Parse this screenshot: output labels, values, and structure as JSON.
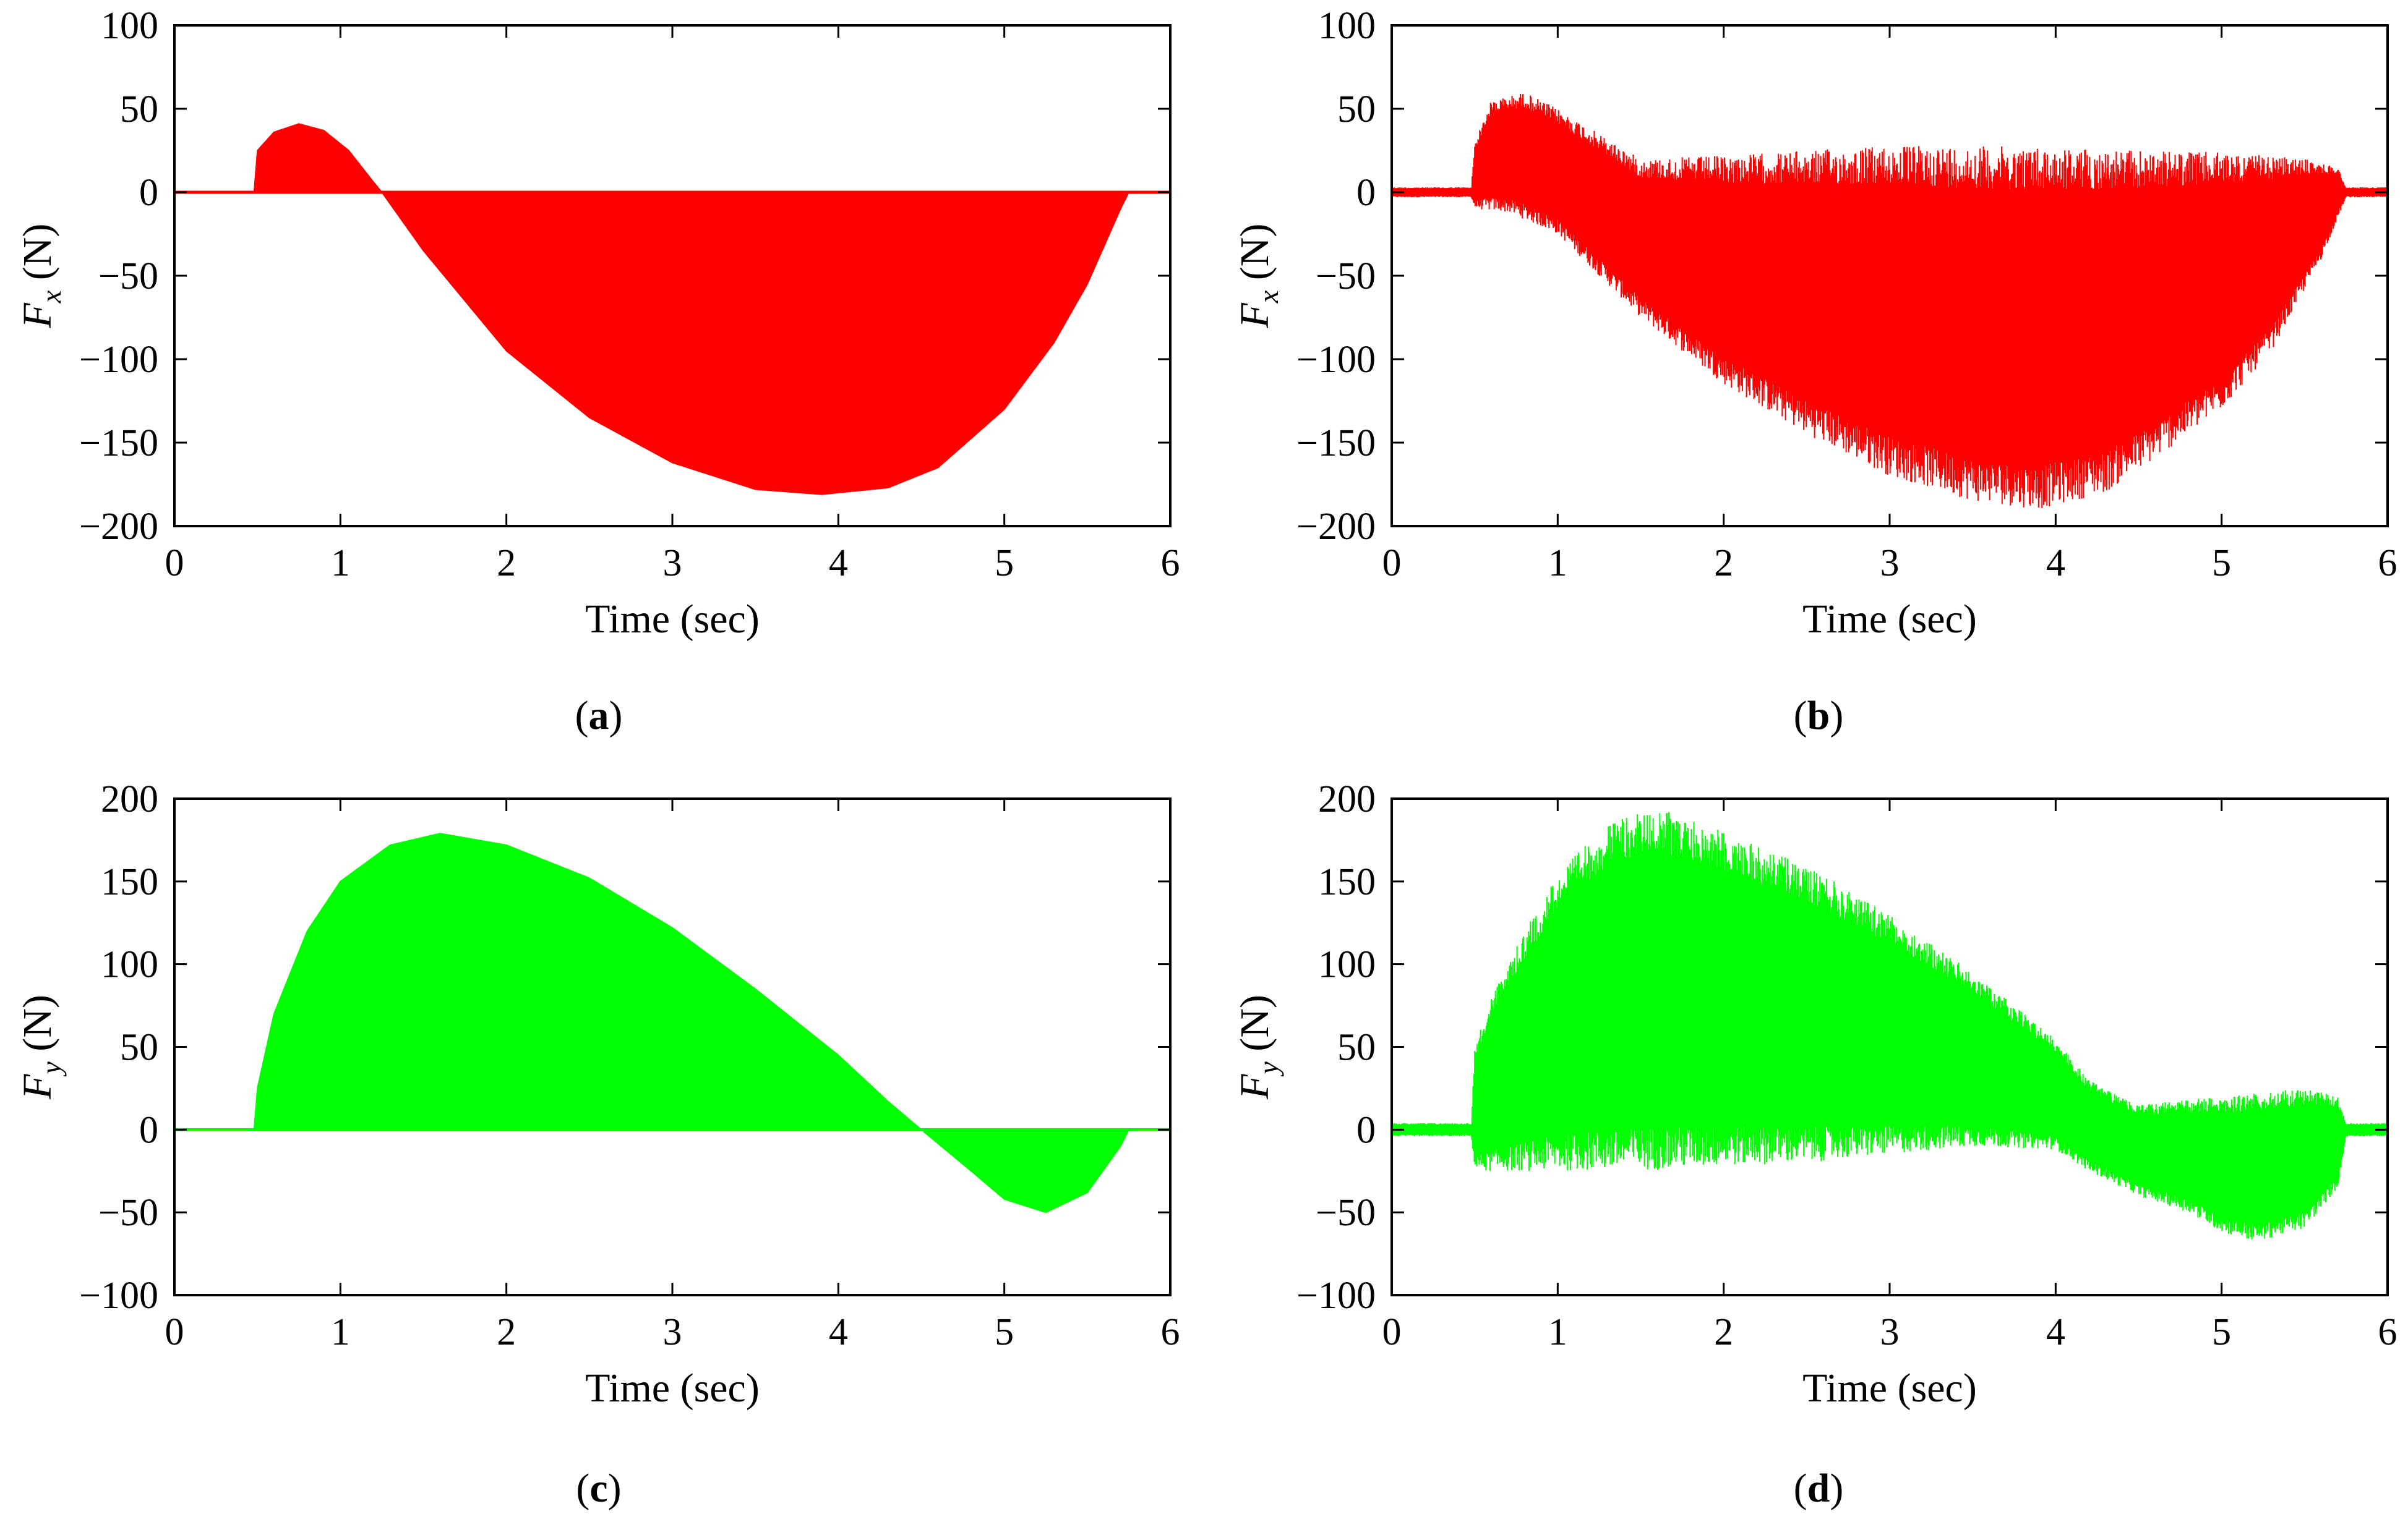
{
  "chart_data": [
    {
      "id": "a",
      "type": "area",
      "caption_letter": "a",
      "xlabel": "Time (sec)",
      "ylabel_var": "F",
      "ylabel_sub": "x",
      "ylabel_unit": "(N)",
      "xlim": [
        0,
        6
      ],
      "ylim": [
        -200,
        100
      ],
      "xticks": [
        "0",
        "1",
        "2",
        "3",
        "4",
        "5",
        "6"
      ],
      "yticks": [
        "100",
        "50",
        "0",
        "−50",
        "−100",
        "−150",
        "−200"
      ],
      "ytick_values": [
        100,
        50,
        0,
        -50,
        -100,
        -150,
        -200
      ],
      "color": "#ff0000",
      "style": "smooth-fill",
      "envelope": {
        "t": [
          0,
          0.45,
          0.48,
          0.5,
          0.6,
          0.75,
          0.9,
          1.05,
          1.2,
          1.25,
          1.5,
          2.0,
          2.5,
          3.0,
          3.5,
          3.9,
          4.3,
          4.6,
          5.0,
          5.3,
          5.5,
          5.7,
          5.75,
          6.0
        ],
        "y": [
          0,
          0,
          0,
          25,
          36,
          41,
          37,
          25,
          6,
          0,
          -35,
          -95,
          -135,
          -162,
          -178,
          -181,
          -177,
          -165,
          -130,
          -90,
          -55,
          -10,
          0,
          0
        ]
      }
    },
    {
      "id": "b",
      "type": "line",
      "caption_letter": "b",
      "xlabel": "Time (sec)",
      "ylabel_var": "F",
      "ylabel_sub": "x",
      "ylabel_unit": "(N)",
      "xlim": [
        0,
        6
      ],
      "ylim": [
        -200,
        100
      ],
      "xticks": [
        "0",
        "1",
        "2",
        "3",
        "4",
        "5",
        "6"
      ],
      "yticks": [
        "100",
        "50",
        "0",
        "−50",
        "−100",
        "−150",
        "−200"
      ],
      "ytick_values": [
        100,
        50,
        0,
        -50,
        -100,
        -150,
        -200
      ],
      "color": "#ff0000",
      "style": "oscillating",
      "upper": {
        "t": [
          0,
          0.48,
          0.5,
          0.6,
          0.8,
          1.0,
          1.5,
          2.0,
          2.5,
          3.0,
          3.5,
          4.0,
          4.5,
          5.0,
          5.5,
          5.7,
          5.75,
          6.0
        ],
        "y": [
          3,
          3,
          30,
          55,
          60,
          50,
          20,
          22,
          25,
          28,
          28,
          27,
          25,
          24,
          20,
          15,
          3,
          3
        ]
      },
      "lower": {
        "t": [
          0,
          0.48,
          0.5,
          0.7,
          1.0,
          1.5,
          2.0,
          2.5,
          3.0,
          3.5,
          3.9,
          4.3,
          4.6,
          5.0,
          5.3,
          5.6,
          5.73,
          5.75,
          6.0
        ],
        "y": [
          -3,
          -3,
          -10,
          -12,
          -25,
          -75,
          -115,
          -145,
          -170,
          -185,
          -190,
          -180,
          -160,
          -130,
          -95,
          -40,
          -8,
          -3,
          -3
        ]
      }
    },
    {
      "id": "c",
      "type": "area",
      "caption_letter": "c",
      "xlabel": "Time (sec)",
      "ylabel_var": "F",
      "ylabel_sub": "y",
      "ylabel_unit": "(N)",
      "xlim": [
        0,
        6
      ],
      "ylim": [
        -100,
        200
      ],
      "xticks": [
        "0",
        "1",
        "2",
        "3",
        "4",
        "5",
        "6"
      ],
      "yticks": [
        "200",
        "150",
        "100",
        "50",
        "0",
        "−50",
        "−100"
      ],
      "ytick_values": [
        200,
        150,
        100,
        50,
        0,
        -50,
        -100
      ],
      "color": "#00ff00",
      "style": "smooth-fill",
      "envelope": {
        "t": [
          0,
          0.48,
          0.5,
          0.6,
          0.8,
          1.0,
          1.3,
          1.6,
          2.0,
          2.5,
          3.0,
          3.5,
          4.0,
          4.3,
          4.5,
          4.8,
          5.0,
          5.25,
          5.5,
          5.7,
          5.75,
          6.0
        ],
        "y": [
          0,
          0,
          25,
          70,
          120,
          150,
          172,
          179,
          172,
          152,
          122,
          85,
          45,
          17,
          0,
          -25,
          -42,
          -50,
          -38,
          -10,
          0,
          0
        ]
      }
    },
    {
      "id": "d",
      "type": "line",
      "caption_letter": "d",
      "xlabel": "Time (sec)",
      "ylabel_var": "F",
      "ylabel_sub": "y",
      "ylabel_unit": "(N)",
      "xlim": [
        0,
        6
      ],
      "ylim": [
        -100,
        200
      ],
      "xticks": [
        "0",
        "1",
        "2",
        "3",
        "4",
        "5",
        "6"
      ],
      "yticks": [
        "200",
        "150",
        "100",
        "50",
        "0",
        "−50",
        "−100"
      ],
      "ytick_values": [
        200,
        150,
        100,
        50,
        0,
        -50,
        -100
      ],
      "color": "#00ff00",
      "style": "oscillating",
      "upper": {
        "t": [
          0,
          0.48,
          0.5,
          0.6,
          0.8,
          1.0,
          1.3,
          1.6,
          2.0,
          2.5,
          3.0,
          3.5,
          4.0,
          4.2,
          4.5,
          5.0,
          5.5,
          5.7,
          5.75,
          6.0
        ],
        "y": [
          4,
          4,
          50,
          80,
          120,
          155,
          185,
          195,
          180,
          160,
          130,
          95,
          55,
          30,
          15,
          20,
          25,
          20,
          4,
          4
        ]
      },
      "lower": {
        "t": [
          0,
          0.48,
          0.5,
          1.0,
          1.5,
          2.0,
          2.5,
          3.0,
          3.5,
          4.0,
          4.2,
          4.5,
          4.8,
          5.0,
          5.2,
          5.5,
          5.7,
          5.75,
          6.0
        ],
        "y": [
          -4,
          -4,
          -25,
          -25,
          -25,
          -22,
          -20,
          -15,
          -10,
          -12,
          -25,
          -40,
          -50,
          -62,
          -68,
          -60,
          -35,
          -4,
          -4
        ]
      }
    }
  ]
}
